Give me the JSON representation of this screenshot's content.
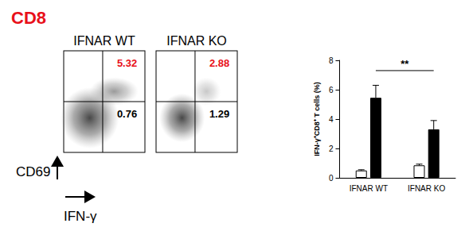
{
  "title": {
    "text": "CD8",
    "color": "#e8101a"
  },
  "flow_plots": {
    "y_label": "CD69",
    "x_label": "IFN-γ",
    "panels": [
      {
        "label": "IFNAR WT",
        "upper_right": 5.32,
        "lower_right": 0.76
      },
      {
        "label": "IFNAR KO",
        "upper_right": 2.88,
        "lower_right": 1.29
      }
    ],
    "upper_right_color": "#e8101a",
    "lower_right_color": "#000000"
  },
  "chart_data": {
    "type": "bar",
    "categories": [
      "IFNAR WT",
      "IFNAR KO"
    ],
    "y_label": "IFN-γ⁺CD8⁺ T cells (%)",
    "series": [
      {
        "color": "#ffffff",
        "values": [
          0.5,
          0.85
        ],
        "errors": [
          0.05,
          0.08
        ]
      },
      {
        "color": "#000000",
        "values": [
          5.45,
          3.3
        ],
        "errors": [
          0.85,
          0.6
        ]
      }
    ],
    "ylim": [
      0,
      8
    ],
    "yticks": [
      0,
      2,
      4,
      6,
      8
    ],
    "grid": false,
    "annotations": [
      {
        "text": "**",
        "from": 0,
        "to": 1,
        "series": 1,
        "y": 7.3
      }
    ]
  }
}
